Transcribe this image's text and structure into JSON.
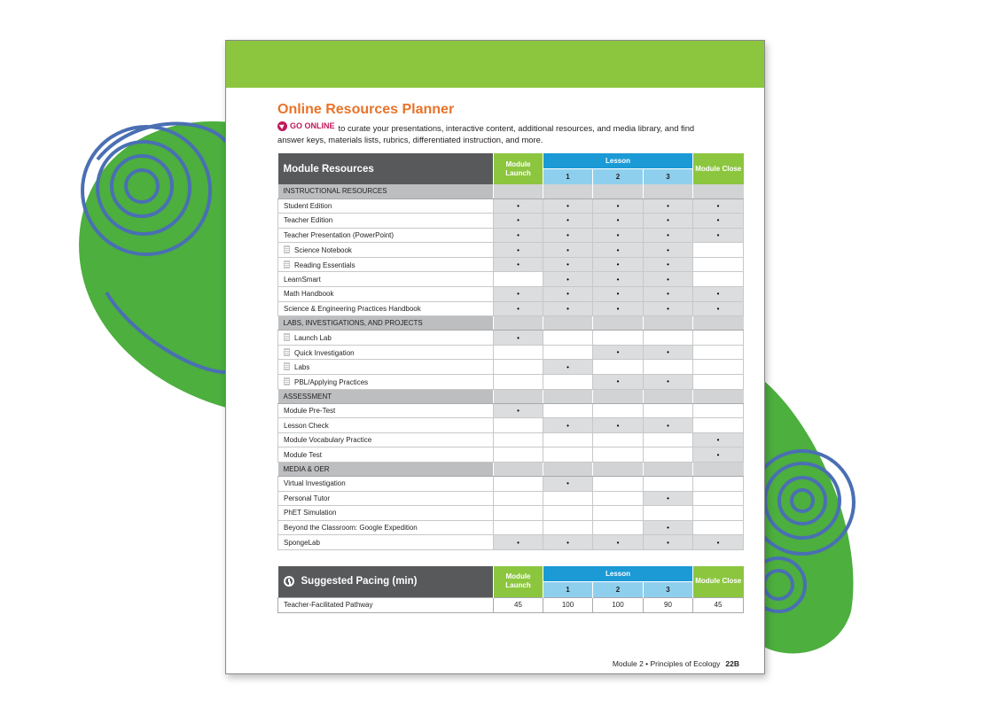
{
  "title": "Online Resources Planner",
  "intro": {
    "go_online": "GO ONLINE",
    "text": "to curate your presentations, interactive content, additional resources, and media library, and find answer keys, materials lists, rubrics, differentiated instruction, and more."
  },
  "resources_table": {
    "header": "Module Resources",
    "col_launch": "Module Launch",
    "col_lesson": "Lesson",
    "lesson_numbers": [
      "1",
      "2",
      "3"
    ],
    "col_close": "Module Close",
    "bullet": "•",
    "sections": [
      {
        "label": "INSTRUCTIONAL RESOURCES",
        "rows": [
          {
            "name": "Student Edition",
            "doc": false,
            "marks": [
              1,
              1,
              1,
              1,
              1
            ]
          },
          {
            "name": "Teacher Edition",
            "doc": false,
            "marks": [
              1,
              1,
              1,
              1,
              1
            ]
          },
          {
            "name": "Teacher Presentation (PowerPoint)",
            "doc": false,
            "marks": [
              1,
              1,
              1,
              1,
              1
            ]
          },
          {
            "name": "Science Notebook",
            "doc": true,
            "marks": [
              1,
              1,
              1,
              1,
              0
            ]
          },
          {
            "name": "Reading Essentials",
            "doc": true,
            "marks": [
              1,
              1,
              1,
              1,
              0
            ]
          },
          {
            "name": "LearnSmart",
            "doc": false,
            "marks": [
              0,
              1,
              1,
              1,
              0
            ]
          },
          {
            "name": "Math Handbook",
            "doc": false,
            "marks": [
              1,
              1,
              1,
              1,
              1
            ]
          },
          {
            "name": "Science & Engineering Practices Handbook",
            "doc": false,
            "marks": [
              1,
              1,
              1,
              1,
              1
            ]
          }
        ]
      },
      {
        "label": "LABS, INVESTIGATIONS, AND PROJECTS",
        "rows": [
          {
            "name": "Launch Lab",
            "doc": true,
            "marks": [
              1,
              0,
              0,
              0,
              0
            ]
          },
          {
            "name": "Quick Investigation",
            "doc": true,
            "marks": [
              0,
              0,
              1,
              1,
              0
            ]
          },
          {
            "name": "Labs",
            "doc": true,
            "marks": [
              0,
              1,
              0,
              0,
              0
            ]
          },
          {
            "name": "PBL/Applying Practices",
            "doc": true,
            "marks": [
              0,
              0,
              1,
              1,
              0
            ]
          }
        ]
      },
      {
        "label": "ASSESSMENT",
        "rows": [
          {
            "name": "Module Pre-Test",
            "doc": false,
            "marks": [
              1,
              0,
              0,
              0,
              0
            ]
          },
          {
            "name": "Lesson Check",
            "doc": false,
            "marks": [
              0,
              1,
              1,
              1,
              0
            ]
          },
          {
            "name": "Module Vocabulary Practice",
            "doc": false,
            "marks": [
              0,
              0,
              0,
              0,
              1
            ]
          },
          {
            "name": "Module Test",
            "doc": false,
            "marks": [
              0,
              0,
              0,
              0,
              1
            ]
          }
        ]
      },
      {
        "label": "MEDIA & OER",
        "rows": [
          {
            "name": "Virtual Investigation",
            "doc": false,
            "marks": [
              0,
              1,
              0,
              0,
              0
            ]
          },
          {
            "name": "Personal Tutor",
            "doc": false,
            "marks": [
              0,
              0,
              0,
              1,
              0
            ]
          },
          {
            "name": "PhET Simulation",
            "doc": false,
            "marks": [
              0,
              0,
              0,
              0,
              0
            ]
          },
          {
            "name": "Beyond the Classroom: Google Expedition",
            "doc": false,
            "marks": [
              0,
              0,
              0,
              1,
              0
            ]
          },
          {
            "name": "SpongeLab",
            "doc": false,
            "marks": [
              1,
              1,
              1,
              1,
              1
            ]
          }
        ]
      }
    ]
  },
  "pacing_table": {
    "header": "Suggested Pacing (min)",
    "col_launch": "Module Launch",
    "col_lesson": "Lesson",
    "lesson_numbers": [
      "1",
      "2",
      "3"
    ],
    "col_close": "Module Close",
    "row_name": "Teacher-Facilitated Pathway",
    "values": [
      "45",
      "100",
      "100",
      "90",
      "45"
    ]
  },
  "footer": {
    "text": "Module 2 • Principles of Ecology",
    "page_number": "22B"
  },
  "colors": {
    "header_green": "#8cc63f",
    "title_orange": "#e8732a",
    "lesson_blue": "#1b9ad6",
    "lesson_light_blue": "#8fcfee",
    "dark_gray": "#58595b",
    "blob_green": "#4caf3e",
    "swirl_blue": "#4a6fb3"
  }
}
